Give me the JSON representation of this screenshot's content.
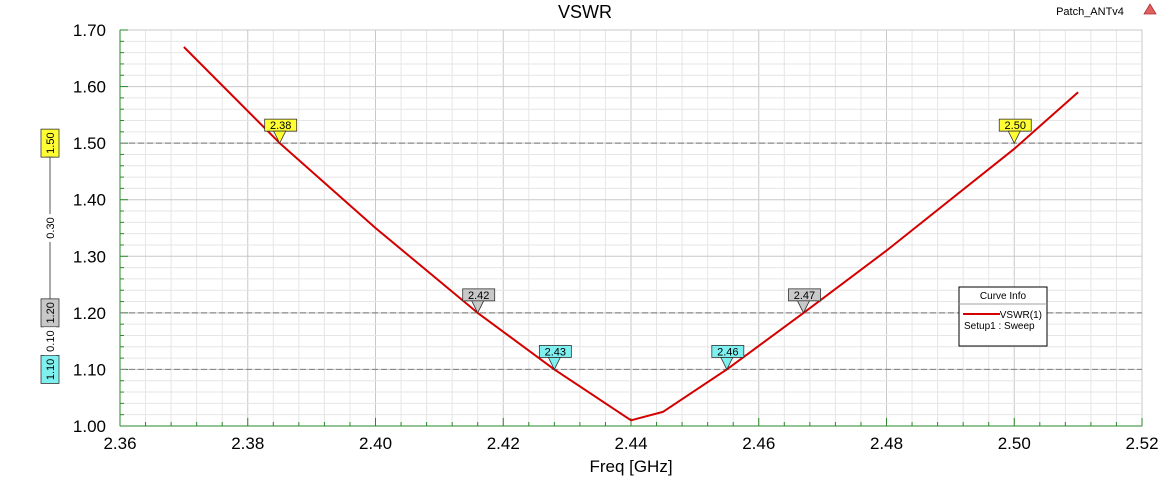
{
  "chart_data": {
    "type": "line",
    "title": "VSWR",
    "project_label": "Patch_ANTv4",
    "xlabel": "Freq [GHz]",
    "ylabel": "",
    "xlim": [
      2.36,
      2.52
    ],
    "ylim": [
      1.0,
      1.7
    ],
    "x_ticks": [
      "2.36",
      "2.38",
      "2.40",
      "2.42",
      "2.44",
      "2.46",
      "2.48",
      "2.50",
      "2.52"
    ],
    "y_ticks": [
      "1.00",
      "1.10",
      "1.20",
      "1.30",
      "1.40",
      "1.50",
      "1.60",
      "1.70"
    ],
    "grid": true,
    "series": [
      {
        "name": "VSWR(1)",
        "color": "#d40000",
        "x": [
          2.37,
          2.385,
          2.4,
          2.416,
          2.428,
          2.44,
          2.445,
          2.455,
          2.467,
          2.48,
          2.5,
          2.51
        ],
        "y": [
          1.67,
          1.5,
          1.35,
          1.2,
          1.1,
          1.01,
          1.025,
          1.1,
          1.2,
          1.31,
          1.49,
          1.59
        ]
      }
    ],
    "reference_lines": [
      {
        "y": 1.5,
        "label": "1.50",
        "color": "#ffff33"
      },
      {
        "y": 1.2,
        "label": "1.20",
        "color": "#c8c8c8"
      },
      {
        "y": 1.1,
        "label": "1.10",
        "color": "#7ff0f0"
      }
    ],
    "deltas": [
      {
        "from": 1.2,
        "to": 1.5,
        "label": "0.30"
      },
      {
        "from": 1.1,
        "to": 1.2,
        "label": "0.10"
      }
    ],
    "markers": [
      {
        "label": "2.38",
        "x": 2.385,
        "y": 1.5,
        "color": "#ffff33"
      },
      {
        "label": "2.42",
        "x": 2.416,
        "y": 1.2,
        "color": "#c8c8c8"
      },
      {
        "label": "2.43",
        "x": 2.428,
        "y": 1.1,
        "color": "#7ff0f0"
      },
      {
        "label": "2.46",
        "x": 2.455,
        "y": 1.1,
        "color": "#7ff0f0"
      },
      {
        "label": "2.47",
        "x": 2.467,
        "y": 1.2,
        "color": "#c8c8c8"
      },
      {
        "label": "2.50",
        "x": 2.5,
        "y": 1.5,
        "color": "#ffff33"
      }
    ],
    "legend": {
      "title": "Curve Info",
      "entry": "VSWR(1)",
      "sub": "Setup1 : Sweep",
      "position": "right"
    }
  }
}
